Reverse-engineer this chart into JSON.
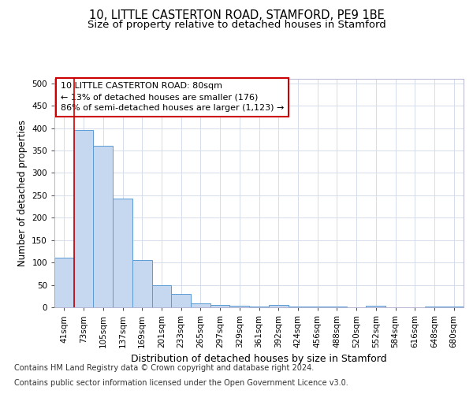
{
  "title_line1": "10, LITTLE CASTERTON ROAD, STAMFORD, PE9 1BE",
  "title_line2": "Size of property relative to detached houses in Stamford",
  "xlabel": "Distribution of detached houses by size in Stamford",
  "ylabel": "Number of detached properties",
  "footnote1": "Contains HM Land Registry data © Crown copyright and database right 2024.",
  "footnote2": "Contains public sector information licensed under the Open Government Licence v3.0.",
  "bar_labels": [
    "41sqm",
    "73sqm",
    "105sqm",
    "137sqm",
    "169sqm",
    "201sqm",
    "233sqm",
    "265sqm",
    "297sqm",
    "329sqm",
    "361sqm",
    "392sqm",
    "424sqm",
    "456sqm",
    "488sqm",
    "520sqm",
    "552sqm",
    "584sqm",
    "616sqm",
    "648sqm",
    "680sqm"
  ],
  "bar_values": [
    110,
    395,
    360,
    243,
    105,
    50,
    30,
    9,
    6,
    3,
    1,
    5,
    1,
    2,
    1,
    0,
    3,
    0,
    0,
    1,
    2
  ],
  "bar_color": "#c5d8f0",
  "bar_edge_color": "#5b9bd5",
  "property_line_x": 0.5,
  "property_line_color": "#cc0000",
  "annotation_text": "10 LITTLE CASTERTON ROAD: 80sqm\n← 13% of detached houses are smaller (176)\n86% of semi-detached houses are larger (1,123) →",
  "annotation_box_edgecolor": "#cc0000",
  "ylim": [
    0,
    510
  ],
  "yticks": [
    0,
    50,
    100,
    150,
    200,
    250,
    300,
    350,
    400,
    450,
    500
  ],
  "bg_color": "#ffffff",
  "grid_color": "#d0d8e8",
  "title_fontsize": 10.5,
  "subtitle_fontsize": 9.5,
  "ylabel_fontsize": 8.5,
  "xlabel_fontsize": 9,
  "tick_fontsize": 7.5,
  "annot_fontsize": 8,
  "footnote_fontsize": 7
}
